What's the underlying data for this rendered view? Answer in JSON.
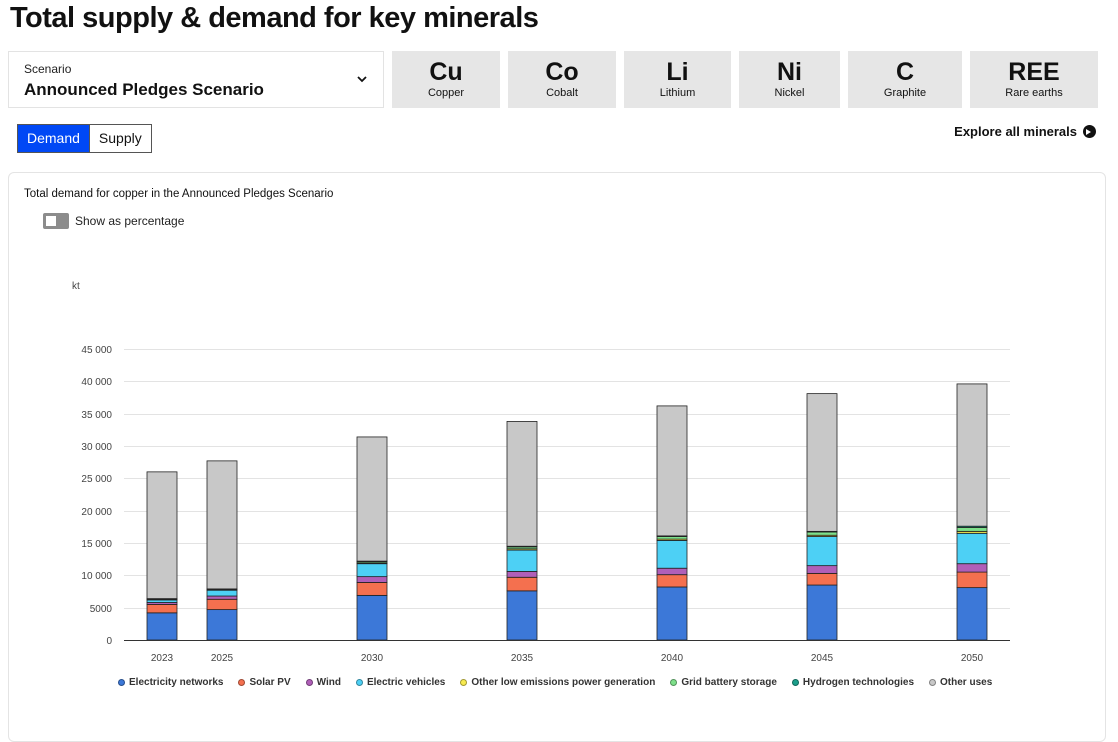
{
  "page": {
    "title": "Total supply & demand for key minerals"
  },
  "scenario": {
    "label": "Scenario",
    "value": "Announced Pledges Scenario"
  },
  "minerals": [
    {
      "symbol": "Cu",
      "name": "Copper",
      "active": true
    },
    {
      "symbol": "Co",
      "name": "Cobalt",
      "active": false
    },
    {
      "symbol": "Li",
      "name": "Lithium",
      "active": false
    },
    {
      "symbol": "Ni",
      "name": "Nickel",
      "active": false
    },
    {
      "symbol": "C",
      "name": "Graphite",
      "active": false
    },
    {
      "symbol": "REE",
      "name": "Rare earths",
      "active": false
    }
  ],
  "view_toggle": {
    "demand": "Demand",
    "supply": "Supply",
    "selected": "Demand"
  },
  "explore_link": "Explore all minerals",
  "show_percentage": {
    "label": "Show as percentage",
    "enabled": false
  },
  "colors": {
    "accent": "#0048f5"
  },
  "chart_data": {
    "type": "bar",
    "stacked": true,
    "title": "Total demand for copper in the Announced Pledges Scenario",
    "ylabel": "kt",
    "ylim": [
      0,
      45000
    ],
    "yticks": [
      0,
      5000,
      10000,
      15000,
      20000,
      25000,
      30000,
      35000,
      40000,
      45000
    ],
    "ytick_labels": [
      "0",
      "5000",
      "10 000",
      "15 000",
      "20 000",
      "25 000",
      "30 000",
      "35 000",
      "40 000",
      "45 000"
    ],
    "grid": true,
    "legend_position": "bottom",
    "categories": [
      "2023",
      "2025",
      "2030",
      "2035",
      "2040",
      "2045",
      "2050"
    ],
    "series": [
      {
        "name": "Electricity networks",
        "color": "#3c78d8",
        "values": [
          4200,
          4700,
          6900,
          7600,
          8200,
          8500,
          8100
        ]
      },
      {
        "name": "Solar PV",
        "color": "#f4704f",
        "values": [
          1300,
          1600,
          2000,
          2100,
          1900,
          1800,
          2400
        ]
      },
      {
        "name": "Wind",
        "color": "#b05fb8",
        "values": [
          300,
          500,
          900,
          900,
          1000,
          1200,
          1300
        ]
      },
      {
        "name": "Electric vehicles",
        "color": "#4dd0f5",
        "values": [
          400,
          900,
          2000,
          3300,
          4300,
          4500,
          4700
        ]
      },
      {
        "name": "Other low emissions power generation",
        "color": "#f7ea4f",
        "values": [
          100,
          100,
          100,
          200,
          200,
          200,
          300
        ]
      },
      {
        "name": "Grid battery storage",
        "color": "#7ee08a",
        "values": [
          100,
          100,
          200,
          300,
          400,
          500,
          600
        ]
      },
      {
        "name": "Hydrogen technologies",
        "color": "#1a9e8a",
        "values": [
          0,
          0,
          100,
          100,
          100,
          100,
          200
        ]
      },
      {
        "name": "Other uses",
        "color": "#c8c8c8",
        "values": [
          19600,
          19800,
          19200,
          19300,
          20100,
          21300,
          22000
        ]
      }
    ]
  }
}
